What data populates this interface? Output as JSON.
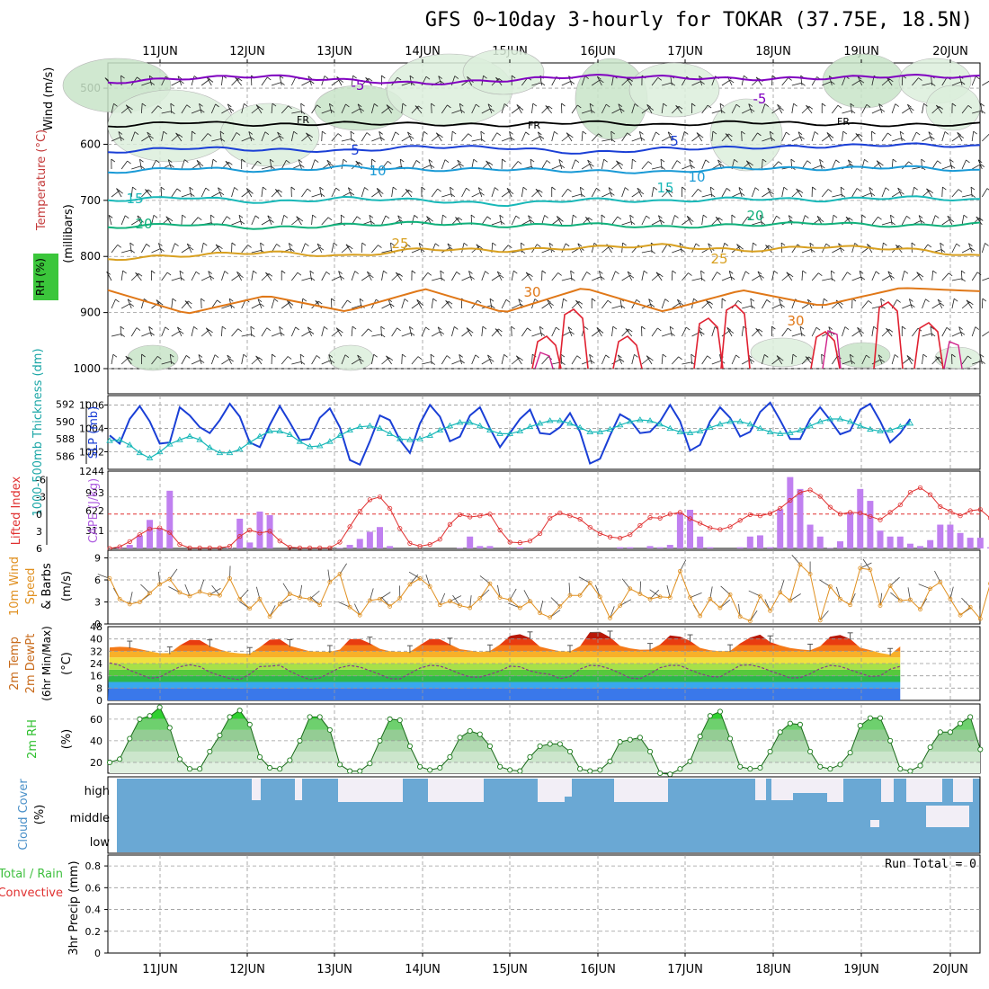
{
  "title": "GFS 0~10day 3-hourly for TOKAR (37.75E, 18.5N)",
  "dates": [
    "11JUN",
    "12JUN",
    "13JUN",
    "14JUN",
    "15JUN",
    "16JUN",
    "17JUN",
    "18JUN",
    "19JUN",
    "20JUN"
  ],
  "colors": {
    "purple": "#8000c0",
    "blue": "#1a3fd6",
    "lightblue": "#1a9ad6",
    "teal": "#18b8b8",
    "green": "#10b07a",
    "gold": "#d8a020",
    "orange": "#e07818",
    "red": "#e02030",
    "magenta": "#d0208a",
    "cloud": "#6aa8d4",
    "cloudClear": "#f2eef6",
    "cape": "#c080f0",
    "li": "#e03030",
    "wind10": "#e09020",
    "rh": "#30c030"
  },
  "chart_data": [
    {
      "type": "line",
      "name": "upper-air",
      "ylabel": "(millibars)",
      "legend": [
        "Wind (m/s)",
        "Temperature (°C)",
        "RH (%)"
      ],
      "yticks": [
        500,
        600,
        700,
        800,
        900,
        1000
      ],
      "ylim": [
        455,
        1000
      ],
      "isotherm_labels": [
        "-5",
        "-5",
        "FR",
        "FR",
        "FR",
        "5",
        "5",
        "10",
        "10",
        "15",
        "15",
        "20",
        "20",
        "25",
        "25",
        "30",
        "30"
      ],
      "series": [
        {
          "name": "-5",
          "level": [
            490,
            482,
            478,
            486,
            492,
            486,
            478,
            480,
            484,
            482,
            478,
            480
          ]
        },
        {
          "name": "FR",
          "level": [
            568,
            560,
            566,
            562,
            564,
            566,
            560,
            566,
            560,
            564,
            566,
            564
          ]
        },
        {
          "name": "5",
          "level": [
            614,
            606,
            610,
            612,
            604,
            606,
            616,
            608,
            606,
            604,
            600,
            604
          ]
        },
        {
          "name": "10",
          "level": [
            650,
            642,
            648,
            640,
            646,
            644,
            648,
            650,
            642,
            644,
            640,
            648
          ]
        },
        {
          "name": "15",
          "level": [
            700,
            694,
            704,
            696,
            700,
            708,
            698,
            702,
            696,
            700,
            694,
            700
          ]
        },
        {
          "name": "20",
          "level": [
            748,
            742,
            750,
            744,
            740,
            746,
            742,
            748,
            744,
            740,
            746,
            742
          ]
        },
        {
          "name": "25",
          "level": [
            805,
            798,
            792,
            800,
            786,
            790,
            784,
            780,
            790,
            782,
            786,
            800
          ]
        },
        {
          "name": "30",
          "level": [
            860,
            902,
            870,
            898,
            858,
            900,
            856,
            898,
            860,
            888,
            856,
            862
          ]
        }
      ]
    },
    {
      "type": "line",
      "name": "thickness-slp",
      "ylabel_left": "1000-500mb Thickness (dm)",
      "ylabel_right": "SLP (mb)",
      "yticks_left": [
        592,
        590,
        588,
        586
      ],
      "yticks_right": [
        1006,
        1004,
        1002
      ],
      "ylim": [
        1000.5,
        1006.8
      ],
      "series": [
        {
          "name": "SLP (mb)",
          "values": [
            1003.4,
            1002.7,
            1004.8,
            1005.9,
            1004.6,
            1002.7,
            1002.8,
            1005.8,
            1005.1,
            1004.1,
            1003.6,
            1004.7,
            1006.1,
            1005.0,
            1002.8,
            1002.4,
            1004.3,
            1005.9,
            1004.5,
            1003.0,
            1003.1,
            1004.9,
            1005.7,
            1004.1,
            1001.3,
            1000.9,
            1002.9,
            1005.1,
            1004.7,
            1003.0,
            1001.9,
            1004.4,
            1006.0,
            1005.0,
            1002.9,
            1003.3,
            1005.1,
            1005.8,
            1004.0,
            1002.4,
            1003.6,
            1004.8,
            1005.6,
            1003.6,
            1003.5,
            1004.1,
            1005.3,
            1003.7,
            1001.0,
            1001.4,
            1003.4,
            1005.2,
            1004.7,
            1003.6,
            1003.7,
            1004.6,
            1006.0,
            1004.6,
            1002.1,
            1002.6,
            1004.6,
            1005.8,
            1004.9,
            1003.3,
            1003.7,
            1005.4,
            1006.2,
            1004.7,
            1003.1,
            1003.1,
            1004.8,
            1005.8,
            1004.7,
            1003.5,
            1003.8,
            1005.6,
            1006.1,
            1004.6,
            1002.8,
            1003.6,
            1004.8
          ]
        },
        {
          "name": "1000-500mb Thickness (dm)",
          "values": [
            587.8,
            587.9,
            587.3,
            586.4,
            585.8,
            586.5,
            587.4,
            587.9,
            588.3,
            587.9,
            587.0,
            586.4,
            586.4,
            586.8,
            587.6,
            588.3,
            588.9,
            588.9,
            588.5,
            587.7,
            587.1,
            587.2,
            587.7,
            588.4,
            589.0,
            589.4,
            589.5,
            589.2,
            588.6,
            588.0,
            587.9,
            588.0,
            588.4,
            589.0,
            589.5,
            589.9,
            589.9,
            589.5,
            589.0,
            588.6,
            588.6,
            588.9,
            589.4,
            589.8,
            590.1,
            590.1,
            589.8,
            589.3,
            588.8,
            588.8,
            589.1,
            589.6,
            590.0,
            590.2,
            590.1,
            589.7,
            589.2,
            588.8,
            588.7,
            588.9,
            589.3,
            589.7,
            590.0,
            590.0,
            589.7,
            589.2,
            588.8,
            588.6,
            588.7,
            589.0,
            589.5,
            590.0,
            590.3,
            590.3,
            590.0,
            589.5,
            589.1,
            588.9,
            589.0,
            589.4,
            589.8
          ]
        }
      ]
    },
    {
      "type": "bar",
      "name": "cape-li",
      "ylabel_left": "Lifted Index",
      "ylabel_right": "CAPE (J/kg)",
      "yticks_left": [
        "-6",
        "-3",
        "0",
        "3",
        "6"
      ],
      "yticks_right": [
        "1244",
        "933",
        "622",
        "311"
      ],
      "series": [
        {
          "name": "CAPE (J/kg)",
          "values": [
            0,
            20,
            60,
            220,
            480,
            340,
            970,
            0,
            0,
            0,
            0,
            0,
            10,
            500,
            100,
            620,
            560,
            0,
            0,
            0,
            0,
            0,
            0,
            10,
            60,
            160,
            280,
            360,
            40,
            0,
            0,
            0,
            0,
            0,
            0,
            10,
            200,
            40,
            40,
            0,
            0,
            20,
            0,
            0,
            0,
            0,
            0,
            0,
            0,
            0,
            0,
            20,
            20,
            0,
            40,
            20,
            60,
            600,
            650,
            200,
            20,
            0,
            0,
            20,
            200,
            220,
            20,
            660,
            1200,
            1000,
            400,
            200,
            10,
            120,
            600,
            1000,
            800,
            300,
            200,
            200,
            80,
            40,
            140,
            400,
            400,
            260,
            180,
            180,
            20,
            80,
            180
          ]
        },
        {
          "name": "Lifted Index",
          "values": [
            6,
            5.7,
            4.8,
            3.6,
            2.6,
            2.4,
            3.2,
            5.3,
            5.9,
            5.9,
            5.9,
            5.9,
            5.6,
            3.9,
            2.8,
            3.3,
            3.0,
            4.7,
            5.8,
            5.9,
            5.9,
            5.9,
            5.9,
            4.9,
            2.2,
            -0.5,
            -2.5,
            -3.0,
            -1.0,
            2.5,
            5.1,
            5.6,
            5.3,
            4.4,
            1.8,
            0.1,
            0.5,
            0.3,
            0.0,
            2.8,
            4.9,
            5.0,
            4.7,
            3.4,
            0.7,
            -0.2,
            0.3,
            0.9,
            2.3,
            3.4,
            4.0,
            4.2,
            3.6,
            2.0,
            0.6,
            0.7,
            0.0,
            -0.3,
            0.8,
            1.6,
            2.4,
            2.7,
            2.2,
            1.1,
            0.1,
            0.3,
            -0.1,
            -1.0,
            -2.4,
            -3.8,
            -4.2,
            -3.1,
            -1.2,
            0.0,
            -0.3,
            -0.2,
            0.4,
            1.0,
            -0.3,
            -1.6,
            -3.8,
            -4.6,
            -3.4,
            -1.3,
            -0.5,
            0.3,
            -0.6,
            -0.8,
            0.7,
            0.6,
            0.2
          ]
        }
      ]
    },
    {
      "type": "line",
      "name": "wind10m",
      "ylabel": "10m Wind Speed & Barbs (m/s)",
      "yticks": [
        0,
        3,
        6,
        9
      ],
      "ylim": [
        0,
        9.8
      ],
      "series": [
        {
          "name": "10m Wind Speed",
          "values": [
            6.2,
            3.4,
            2.7,
            3.0,
            4.2,
            5.4,
            6.1,
            4.3,
            3.8,
            4.4,
            4.0,
            3.9,
            6.2,
            3.4,
            2.1,
            3.4,
            1.0,
            2.7,
            4.1,
            3.6,
            3.4,
            2.6,
            5.7,
            6.8,
            2.3,
            1.2,
            3.2,
            3.4,
            2.4,
            3.5,
            5.4,
            6.2,
            5.1,
            2.6,
            3.1,
            2.5,
            2.2,
            3.5,
            5.5,
            3.6,
            3.3,
            2.2,
            3.1,
            1.5,
            0.9,
            2.4,
            3.9,
            3.9,
            5.6,
            3.7,
            0.8,
            2.5,
            4.8,
            4.1,
            3.4,
            3.7,
            3.6,
            7.2,
            3.6,
            1.1,
            3.4,
            2.2,
            4.0,
            1.0,
            0.4,
            3.8,
            1.8,
            4.3,
            3.2,
            8.1,
            6.8,
            0.5,
            5.1,
            3.4,
            2.6,
            7.6,
            7.4,
            2.5,
            5.2,
            3.2,
            3.3,
            2.0,
            4.8,
            5.7,
            3.4,
            1.2,
            2.3,
            0.7,
            5.5,
            4.4,
            6.8
          ]
        }
      ]
    },
    {
      "type": "area",
      "name": "temperature",
      "ylabel": "2m Temp 2m DewPt (6hr Min/Max) (°C)",
      "yticks": [
        48,
        40,
        32,
        24,
        16,
        8,
        0
      ],
      "ylim": [
        0,
        48
      ],
      "series": [
        {
          "name": "2m Temp",
          "values": [
            34.5,
            34.9,
            34.6,
            33.4,
            32.0,
            30.7,
            30.8,
            35.8,
            39.4,
            39.2,
            35.4,
            33.1,
            31.3,
            30.6,
            30.4,
            34.6,
            39.5,
            39.8,
            35.5,
            33.7,
            32.0,
            31.7,
            31.7,
            33.1,
            39.9,
            40.0,
            37.2,
            33.6,
            32.0,
            31.6,
            31.6,
            36.0,
            40.0,
            39.8,
            36.5,
            33.4,
            32.4,
            31.5,
            32.1,
            36.4,
            42.0,
            43.1,
            40.6,
            35.0,
            33.4,
            32.0,
            31.8,
            35.3,
            44.5,
            44.6,
            41.1,
            35.5,
            33.9,
            33.0,
            33.1,
            36.4,
            42.3,
            41.5,
            38.7,
            34.2,
            32.6,
            32.0,
            32.2,
            37.1,
            40.9,
            42.8,
            38.0,
            35.8,
            34.1,
            33.2,
            32.6,
            35.3,
            41.5,
            42.6,
            40.0,
            34.3,
            32.7,
            30.9,
            29.8,
            35.1
          ]
        },
        {
          "name": "2m DewPt",
          "values": [
            24.4,
            22.9,
            19.6,
            17.1,
            14.4,
            15.1,
            18.7,
            21.9,
            23.2,
            22.0,
            18.4,
            16.2,
            14.2,
            13.5,
            17.1,
            22.0,
            22.3,
            22.9,
            19.0,
            15.9,
            13.6,
            14.6,
            17.9,
            21.3,
            22.7,
            21.7,
            19.4,
            16.9,
            14.1,
            14.0,
            17.5,
            21.0,
            22.8,
            22.4,
            20.1,
            17.3,
            15.2,
            15.1,
            17.0,
            19.2,
            22.3,
            21.9,
            19.2,
            17.8,
            16.9,
            14.1,
            15.5,
            20.4,
            22.8,
            22.5,
            20.5,
            17.7,
            14.5,
            14.1,
            17.3,
            21.3,
            22.8,
            22.7,
            19.9,
            17.4,
            15.6,
            15.2,
            19.0,
            22.8,
            23.1,
            21.7,
            19.2,
            17.0,
            14.6,
            14.8,
            17.3,
            20.8,
            22.8,
            22.1,
            19.9,
            17.7,
            15.5,
            16.0,
            20.3,
            22.2
          ]
        }
      ]
    },
    {
      "type": "area",
      "name": "rh2m",
      "ylabel": "2m RH (%)",
      "yticks": [
        20,
        40,
        60
      ],
      "ylim": [
        10,
        74
      ],
      "series": [
        {
          "name": "2m RH",
          "values": [
            20,
            23,
            42,
            60,
            63,
            71,
            52,
            23,
            14,
            14,
            30,
            45,
            62,
            68,
            55,
            25,
            15,
            14,
            22,
            40,
            62,
            62,
            50,
            18,
            12,
            12,
            19,
            40,
            60,
            59,
            35,
            16,
            13,
            15,
            25,
            43,
            49,
            46,
            35,
            16,
            13,
            12,
            25,
            35,
            37,
            37,
            30,
            14,
            12,
            13,
            21,
            39,
            41,
            43,
            30,
            10,
            9,
            14,
            21,
            44,
            63,
            67,
            42,
            16,
            14,
            15,
            30,
            48,
            56,
            55,
            30,
            16,
            14,
            18,
            29,
            54,
            61,
            61,
            40,
            14,
            12,
            17,
            34,
            48,
            48,
            56,
            62,
            32
          ]
        }
      ]
    },
    {
      "type": "heatmap",
      "name": "cloud-cover",
      "ylabel": "Cloud Cover (%)",
      "rows": [
        "high",
        "middle",
        "low"
      ]
    },
    {
      "type": "bar",
      "name": "precip",
      "ylabel": "3hr Precip (mm)",
      "legend_left": "Total / Rain",
      "legend_left2": "Convective",
      "yticks": [
        "0.8",
        "0.6",
        "0.4",
        "0.2",
        "0"
      ],
      "ylim": [
        0,
        0.9
      ],
      "run_total": "Run Total = 0",
      "series": [
        {
          "name": "3hr Precip",
          "values": []
        }
      ]
    }
  ]
}
